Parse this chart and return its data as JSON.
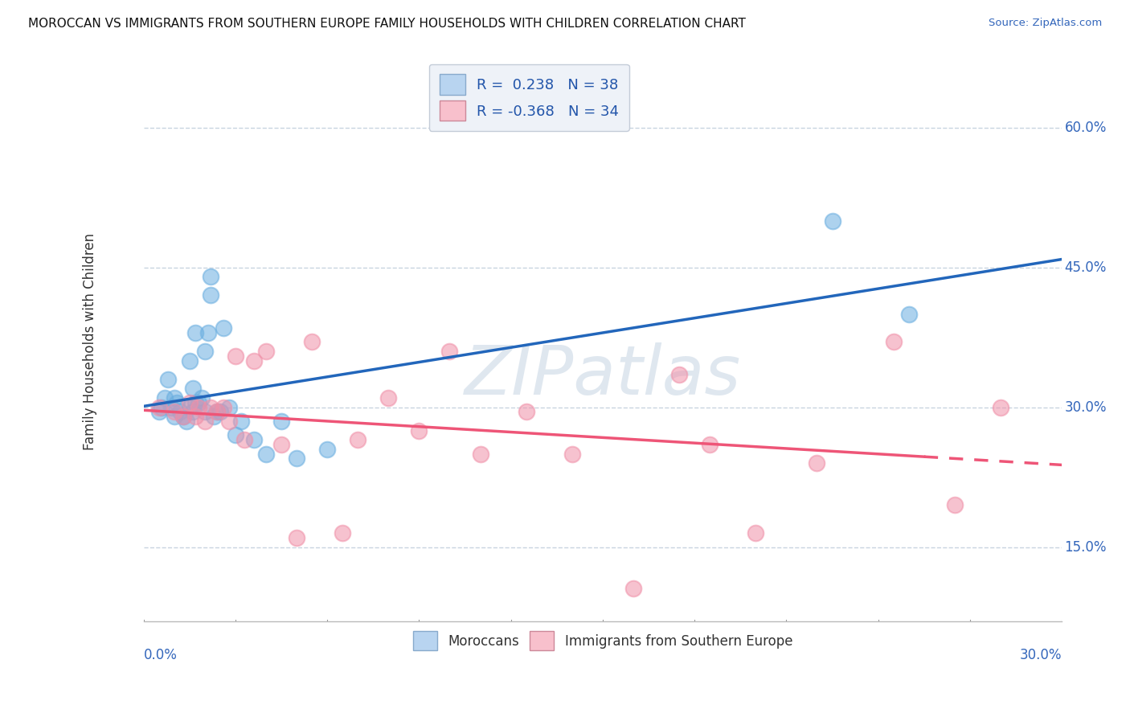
{
  "title": "MOROCCAN VS IMMIGRANTS FROM SOUTHERN EUROPE FAMILY HOUSEHOLDS WITH CHILDREN CORRELATION CHART",
  "source": "Source: ZipAtlas.com",
  "ylabel": "Family Households with Children",
  "ytick_labels": [
    "15.0%",
    "30.0%",
    "45.0%",
    "60.0%"
  ],
  "ytick_vals": [
    0.15,
    0.3,
    0.45,
    0.6
  ],
  "xlim": [
    0.0,
    0.3
  ],
  "ylim": [
    0.07,
    0.67
  ],
  "moroccan_R": 0.238,
  "moroccan_N": 38,
  "southern_europe_R": -0.368,
  "southern_europe_N": 34,
  "blue_dot_color": "#6aaee0",
  "pink_dot_color": "#f090a8",
  "blue_legend_color": "#b8d4f0",
  "pink_legend_color": "#f8c0cc",
  "trend_blue": "#2266bb",
  "trend_pink": "#ee5577",
  "moroccan_x": [
    0.005,
    0.006,
    0.007,
    0.008,
    0.009,
    0.01,
    0.01,
    0.011,
    0.012,
    0.013,
    0.014,
    0.015,
    0.015,
    0.016,
    0.016,
    0.017,
    0.017,
    0.018,
    0.019,
    0.02,
    0.02,
    0.021,
    0.022,
    0.022,
    0.023,
    0.024,
    0.025,
    0.026,
    0.028,
    0.03,
    0.032,
    0.036,
    0.04,
    0.045,
    0.05,
    0.06,
    0.225,
    0.25
  ],
  "moroccan_y": [
    0.295,
    0.3,
    0.31,
    0.33,
    0.3,
    0.29,
    0.31,
    0.305,
    0.295,
    0.29,
    0.285,
    0.3,
    0.35,
    0.295,
    0.32,
    0.305,
    0.38,
    0.305,
    0.31,
    0.295,
    0.36,
    0.38,
    0.42,
    0.44,
    0.29,
    0.295,
    0.295,
    0.385,
    0.3,
    0.27,
    0.285,
    0.265,
    0.25,
    0.285,
    0.245,
    0.255,
    0.5,
    0.4
  ],
  "southern_x": [
    0.005,
    0.01,
    0.013,
    0.015,
    0.017,
    0.018,
    0.02,
    0.022,
    0.024,
    0.026,
    0.028,
    0.03,
    0.033,
    0.036,
    0.04,
    0.045,
    0.05,
    0.055,
    0.065,
    0.07,
    0.08,
    0.09,
    0.1,
    0.11,
    0.125,
    0.14,
    0.16,
    0.175,
    0.185,
    0.2,
    0.22,
    0.245,
    0.265,
    0.28
  ],
  "southern_y": [
    0.3,
    0.295,
    0.29,
    0.305,
    0.29,
    0.3,
    0.285,
    0.3,
    0.295,
    0.3,
    0.285,
    0.355,
    0.265,
    0.35,
    0.36,
    0.26,
    0.16,
    0.37,
    0.165,
    0.265,
    0.31,
    0.275,
    0.36,
    0.25,
    0.295,
    0.25,
    0.106,
    0.335,
    0.26,
    0.165,
    0.24,
    0.37,
    0.195,
    0.3
  ],
  "watermark": "ZIPatlas",
  "background_color": "#ffffff",
  "grid_color": "#c8d4e0",
  "legend_face_color": "#eef2f8",
  "legend_edge_color": "#c4ccd8"
}
